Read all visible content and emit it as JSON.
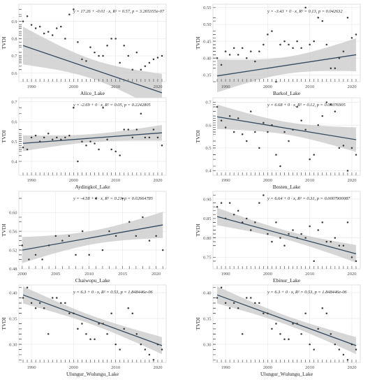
{
  "figure": {
    "background": "#ffffff",
    "panel_bg": "#ffffff",
    "grid_color": "#e6e6e6",
    "band_color": "#c8c8c8",
    "line_color": "#34495e",
    "point_color": "#3a3a3a",
    "rug_color": "#5b5b5b"
  },
  "chart_data": [
    {
      "type": "scatter",
      "title": "",
      "xlabel": "Alice_Lake",
      "ylabel": "TVDI",
      "equation": "y = 17.26 + -0.01 · x,  R² = 0.57,  p = 3.265355e-07",
      "xlim": [
        1987,
        2022
      ],
      "ylim": [
        0.55,
        1.0
      ],
      "xticks": [
        1990,
        2000,
        2010,
        2020
      ],
      "yticks": [
        0.6,
        0.7,
        0.8,
        0.9
      ],
      "points": {
        "x": [
          1988,
          1989,
          1990,
          1991,
          1992,
          1993,
          1994,
          1995,
          1996,
          1997,
          1998,
          1999,
          2000,
          2001,
          2002,
          2003,
          2004,
          2005,
          2006,
          2007,
          2008,
          2009,
          2010,
          2011,
          2012,
          2013,
          2014,
          2015,
          2016,
          2017,
          2018,
          2019,
          2020,
          2021
        ],
        "y": [
          0.9,
          0.93,
          0.88,
          0.86,
          0.87,
          0.83,
          0.84,
          0.82,
          0.86,
          0.87,
          0.8,
          0.94,
          0.97,
          0.78,
          0.68,
          0.67,
          0.75,
          0.72,
          0.7,
          0.7,
          0.76,
          0.8,
          0.8,
          0.66,
          0.76,
          0.7,
          0.62,
          0.72,
          0.62,
          0.64,
          0.66,
          0.68,
          0.69,
          0.7
        ]
      },
      "fit": {
        "intercept": 17.26,
        "slope": -0.0083
      }
    },
    {
      "type": "scatter",
      "title": "",
      "xlabel": "Barkol_Lake",
      "ylabel": "TVDI",
      "equation": "y = -3.43 + 0 · x,  R² = 0.13,  p = 0.042632",
      "xlim": [
        1987,
        2022
      ],
      "ylim": [
        0.33,
        0.56
      ],
      "xticks": [
        1990,
        2000,
        2010,
        2020
      ],
      "yticks": [
        0.35,
        0.4,
        0.45,
        0.5,
        0.55
      ],
      "points": {
        "x": [
          1988,
          1989,
          1990,
          1991,
          1992,
          1993,
          1994,
          1995,
          1996,
          1997,
          1998,
          1999,
          2000,
          2001,
          2002,
          2003,
          2004,
          2005,
          2006,
          2007,
          2008,
          2009,
          2010,
          2011,
          2012,
          2013,
          2014,
          2015,
          2016,
          2017,
          2018,
          2019,
          2020,
          2021
        ],
        "y": [
          0.4,
          0.38,
          0.42,
          0.41,
          0.43,
          0.41,
          0.43,
          0.4,
          0.42,
          0.39,
          0.42,
          0.44,
          0.47,
          0.48,
          0.33,
          0.44,
          0.45,
          0.44,
          0.43,
          0.45,
          0.43,
          0.55,
          0.44,
          0.45,
          0.52,
          0.51,
          0.44,
          0.37,
          0.37,
          0.4,
          0.42,
          0.52,
          0.46,
          0.47
        ]
      },
      "fit": {
        "intercept": -3.43,
        "slope": 0.0019
      }
    },
    {
      "type": "scatter",
      "title": "",
      "xlabel": "Aydingkol_Lake",
      "ylabel": "TVDI",
      "equation": "y = -2.69 + 0 · x,  R² = 0.05,  p = 0.2242805",
      "xlim": [
        1987,
        2022
      ],
      "ylim": [
        0.33,
        0.72
      ],
      "xticks": [
        1990,
        2000,
        2010,
        2020
      ],
      "yticks": [
        0.4,
        0.5,
        0.6,
        0.7
      ],
      "points": {
        "x": [
          1988,
          1989,
          1990,
          1991,
          1992,
          1993,
          1994,
          1995,
          1996,
          1997,
          1998,
          1999,
          2000,
          2001,
          2002,
          2003,
          2004,
          2005,
          2006,
          2007,
          2008,
          2009,
          2010,
          2011,
          2012,
          2013,
          2014,
          2015,
          2016,
          2017,
          2018,
          2019,
          2020,
          2021
        ],
        "y": [
          0.47,
          0.46,
          0.52,
          0.53,
          0.5,
          0.52,
          0.54,
          0.51,
          0.52,
          0.51,
          0.52,
          0.53,
          0.67,
          0.4,
          0.5,
          0.48,
          0.5,
          0.49,
          0.46,
          0.67,
          0.51,
          0.46,
          0.45,
          0.43,
          0.56,
          0.56,
          0.52,
          0.56,
          0.64,
          0.52,
          0.52,
          0.56,
          0.52,
          0.48
        ]
      },
      "fit": {
        "intercept": -2.69,
        "slope": 0.0016
      }
    },
    {
      "type": "scatter",
      "title": "",
      "xlabel": "Bosten_Lake",
      "ylabel": "TVDI",
      "equation": "y = 6.68 + 0 · x,  R² = 0.12,  p = 0.05076905",
      "xlim": [
        1987,
        2022
      ],
      "ylim": [
        0.38,
        0.72
      ],
      "xticks": [
        1990,
        2000,
        2010,
        2020
      ],
      "yticks": [
        0.4,
        0.5,
        0.6,
        0.7
      ],
      "points": {
        "x": [
          1988,
          1989,
          1990,
          1991,
          1992,
          1993,
          1994,
          1995,
          1996,
          1997,
          1998,
          1999,
          2000,
          2001,
          2002,
          2003,
          2004,
          2005,
          2006,
          2007,
          2008,
          2009,
          2010,
          2011,
          2012,
          2013,
          2014,
          2015,
          2016,
          2017,
          2018,
          2019,
          2020,
          2021
        ],
        "y": [
          0.68,
          0.62,
          0.59,
          0.64,
          0.57,
          0.63,
          0.56,
          0.53,
          0.66,
          0.57,
          0.5,
          0.61,
          0.57,
          0.6,
          0.47,
          0.42,
          0.57,
          0.53,
          0.58,
          0.68,
          0.62,
          0.58,
          0.45,
          0.47,
          0.6,
          0.64,
          0.7,
          0.69,
          0.66,
          0.5,
          0.51,
          0.4,
          0.5,
          0.47
        ]
      },
      "fit": {
        "intercept": 6.68,
        "slope": -0.00304
      }
    },
    {
      "type": "scatter",
      "title": "",
      "xlabel": "Chaiwopu_Lake",
      "ylabel": "TVDI",
      "equation": "y = -4.58 + 0 · x,  R² = 0.21,  p = 0.02664785",
      "xlim": [
        1999.5,
        2021.5
      ],
      "ylim": [
        0.48,
        0.645
      ],
      "xticks": [
        2000,
        2005,
        2010,
        2015,
        2020
      ],
      "yticks": [
        0.48,
        0.52,
        0.56,
        0.6
      ],
      "points": {
        "x": [
          2000,
          2001,
          2002,
          2003,
          2004,
          2005,
          2006,
          2007,
          2008,
          2009,
          2010,
          2011,
          2012,
          2013,
          2014,
          2015,
          2016,
          2017,
          2018,
          2019,
          2020,
          2021
        ],
        "y": [
          0.53,
          0.5,
          0.51,
          0.5,
          0.53,
          0.55,
          0.54,
          0.55,
          0.51,
          0.56,
          0.51,
          0.63,
          0.52,
          0.56,
          0.55,
          0.63,
          0.58,
          0.55,
          0.59,
          0.54,
          0.55,
          0.52
        ]
      },
      "fit": {
        "intercept": -4.58,
        "slope": 0.00255
      }
    },
    {
      "type": "scatter",
      "title": "",
      "xlabel": "Ebinur_Lake",
      "ylabel": "TVDI",
      "equation": "y = 6.64 + 0 · x,  R² = 0.31,  p = 0.0007900087",
      "xlim": [
        1987,
        2022
      ],
      "ylim": [
        0.72,
        0.92
      ],
      "xticks": [
        1990,
        2000,
        2010,
        2020
      ],
      "yticks": [
        0.75,
        0.8,
        0.85,
        0.9
      ],
      "points": {
        "x": [
          1988,
          1989,
          1990,
          1991,
          1992,
          1993,
          1994,
          1995,
          1996,
          1997,
          1998,
          1999,
          2000,
          2001,
          2002,
          2003,
          2004,
          2005,
          2006,
          2007,
          2008,
          2009,
          2010,
          2011,
          2012,
          2013,
          2014,
          2015,
          2016,
          2017,
          2018,
          2019,
          2020,
          2021
        ],
        "y": [
          0.88,
          0.89,
          0.85,
          0.89,
          0.86,
          0.87,
          0.84,
          0.85,
          0.82,
          0.84,
          0.89,
          0.91,
          0.81,
          0.79,
          0.84,
          0.8,
          0.78,
          0.81,
          0.82,
          0.8,
          0.81,
          0.8,
          0.83,
          0.74,
          0.82,
          0.84,
          0.79,
          0.79,
          0.8,
          0.78,
          0.78,
          0.84,
          0.75,
          0.74
        ]
      },
      "fit": {
        "intercept": 6.64,
        "slope": -0.00291
      }
    },
    {
      "type": "scatter",
      "title": "",
      "xlabel": "Ulungur_Wulungu_Lake",
      "ylabel": "TVDI",
      "equation": "y = 6.3 + 0 · x,  R² = 0.53,  p = 1.848446e-06",
      "xlim": [
        1987,
        2022
      ],
      "ylim": [
        0.265,
        0.415
      ],
      "xticks": [
        1990,
        2000,
        2010,
        2020
      ],
      "yticks": [
        0.3,
        0.35,
        0.4
      ],
      "points": {
        "x": [
          1988,
          1989,
          1990,
          1991,
          1992,
          1993,
          1994,
          1995,
          1996,
          1997,
          1998,
          1999,
          2000,
          2001,
          2002,
          2003,
          2004,
          2005,
          2006,
          2007,
          2008,
          2009,
          2010,
          2011,
          2012,
          2013,
          2014,
          2015,
          2016,
          2017,
          2018,
          2019,
          2020,
          2021
        ],
        "y": [
          0.39,
          0.41,
          0.38,
          0.37,
          0.38,
          0.37,
          0.32,
          0.39,
          0.39,
          0.38,
          0.38,
          0.36,
          0.36,
          0.33,
          0.34,
          0.32,
          0.31,
          0.31,
          0.34,
          0.34,
          0.32,
          0.36,
          0.3,
          0.29,
          0.33,
          0.37,
          0.36,
          0.32,
          0.3,
          0.29,
          0.28,
          0.27,
          0.3,
          0.29
        ]
      },
      "fit": {
        "intercept": 6.3,
        "slope": -0.00297
      }
    },
    {
      "type": "scatter",
      "title": "",
      "xlabel": "Ulungur_Wulungu_Lake",
      "ylabel": "TVDI",
      "equation": "y = 6.3 + 0 · x,  R² = 0.53,  p = 1.848446e-06",
      "xlim": [
        1987,
        2022
      ],
      "ylim": [
        0.265,
        0.415
      ],
      "xticks": [
        1990,
        2000,
        2010,
        2020
      ],
      "yticks": [
        0.3,
        0.35,
        0.4
      ],
      "points": {
        "x": [
          1988,
          1989,
          1990,
          1991,
          1992,
          1993,
          1994,
          1995,
          1996,
          1997,
          1998,
          1999,
          2000,
          2001,
          2002,
          2003,
          2004,
          2005,
          2006,
          2007,
          2008,
          2009,
          2010,
          2011,
          2012,
          2013,
          2014,
          2015,
          2016,
          2017,
          2018,
          2019,
          2020,
          2021
        ],
        "y": [
          0.39,
          0.41,
          0.38,
          0.37,
          0.38,
          0.37,
          0.32,
          0.39,
          0.39,
          0.38,
          0.38,
          0.36,
          0.36,
          0.33,
          0.34,
          0.32,
          0.31,
          0.31,
          0.34,
          0.34,
          0.32,
          0.36,
          0.3,
          0.29,
          0.33,
          0.37,
          0.36,
          0.32,
          0.3,
          0.29,
          0.28,
          0.27,
          0.3,
          0.29
        ]
      },
      "fit": {
        "intercept": 6.3,
        "slope": -0.00297
      }
    }
  ]
}
